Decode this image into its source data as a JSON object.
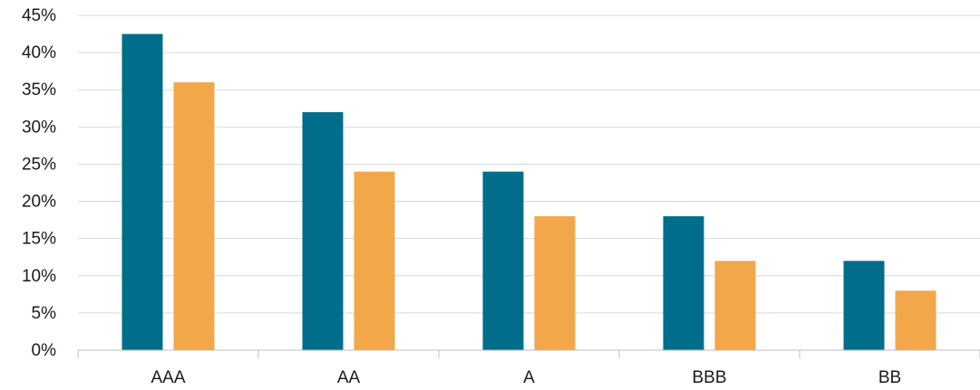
{
  "chart_data": {
    "type": "bar",
    "categories": [
      "AAA",
      "AA",
      "A",
      "BBB",
      "BB"
    ],
    "series": [
      {
        "values": [
          42.5,
          32,
          24,
          18,
          12
        ],
        "color": "#006E8A"
      },
      {
        "values": [
          36,
          24,
          18,
          12,
          8
        ],
        "color": "#F2A74B"
      }
    ],
    "ylim": [
      0,
      45
    ],
    "yticks": [
      0,
      5,
      10,
      15,
      20,
      25,
      30,
      35,
      40,
      45
    ],
    "ytick_labels": [
      "0%",
      "5%",
      "10%",
      "15%",
      "20%",
      "25%",
      "30%",
      "35%",
      "40%",
      "45%"
    ],
    "grid": true,
    "gridline_color": "#D9D9D9",
    "axis_color": "#BFBFBF"
  }
}
